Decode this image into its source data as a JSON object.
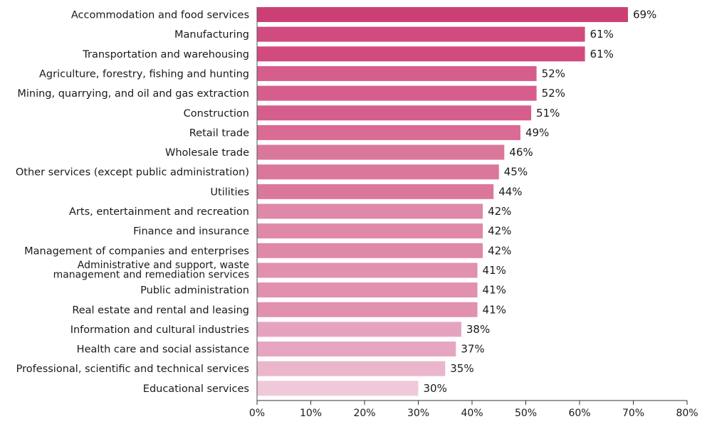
{
  "chart_data": {
    "type": "bar",
    "orientation": "horizontal",
    "categories": [
      "Accommodation and food services",
      "Manufacturing",
      "Transportation and warehousing",
      "Agriculture, forestry, fishing and hunting",
      "Mining, quarrying, and oil and gas extraction",
      "Construction",
      "Retail trade",
      "Wholesale trade",
      "Other services (except public administration)",
      "Utilities",
      "Arts, entertainment and recreation",
      "Finance and insurance",
      "Management of companies and enterprises",
      "Administrative and support, waste management and remediation services",
      "Public administration",
      "Real estate and rental and leasing",
      "Information and cultural industries",
      "Health care and social assistance",
      "Professional, scientific and technical services",
      "Educational services"
    ],
    "category_label_lines": [
      [
        "Accommodation and food services"
      ],
      [
        "Manufacturing"
      ],
      [
        "Transportation and warehousing"
      ],
      [
        "Agriculture, forestry, fishing and hunting"
      ],
      [
        "Mining, quarrying, and oil and gas extraction"
      ],
      [
        "Construction"
      ],
      [
        "Retail trade"
      ],
      [
        "Wholesale trade"
      ],
      [
        "Other services (except public administration)"
      ],
      [
        "Utilities"
      ],
      [
        "Arts, entertainment and recreation"
      ],
      [
        "Finance and insurance"
      ],
      [
        "Management of companies and enterprises"
      ],
      [
        "Administrative and support, waste",
        "management and remediation services"
      ],
      [
        "Public administration"
      ],
      [
        "Real estate and rental and leasing"
      ],
      [
        "Information and cultural industries"
      ],
      [
        "Health care and social assistance"
      ],
      [
        "Professional, scientific and technical services"
      ],
      [
        "Educational services"
      ]
    ],
    "values": [
      69,
      61,
      61,
      52,
      52,
      51,
      49,
      46,
      45,
      44,
      42,
      42,
      42,
      41,
      41,
      41,
      38,
      37,
      35,
      30
    ],
    "value_labels": [
      "69%",
      "61%",
      "61%",
      "52%",
      "52%",
      "51%",
      "49%",
      "46%",
      "45%",
      "44%",
      "42%",
      "42%",
      "42%",
      "41%",
      "41%",
      "41%",
      "38%",
      "37%",
      "35%",
      "30%"
    ],
    "bar_colors": [
      "#cc3f75",
      "#d14b7f",
      "#d14b7f",
      "#d65e8c",
      "#d65e8c",
      "#d65e8c",
      "#d96b95",
      "#dc779c",
      "#dc779c",
      "#dc779c",
      "#e088aa",
      "#e088aa",
      "#e088aa",
      "#e290b0",
      "#e290b0",
      "#e290b0",
      "#e6a3c0",
      "#e6a6c2",
      "#ebb6cc",
      "#efc9da"
    ],
    "x_ticks": [
      "0%",
      "10%",
      "20%",
      "30%",
      "40%",
      "50%",
      "60%",
      "70%",
      "80%"
    ],
    "xlim": [
      0,
      80
    ],
    "grid": false,
    "xlabel": "",
    "ylabel": "",
    "title": ""
  }
}
